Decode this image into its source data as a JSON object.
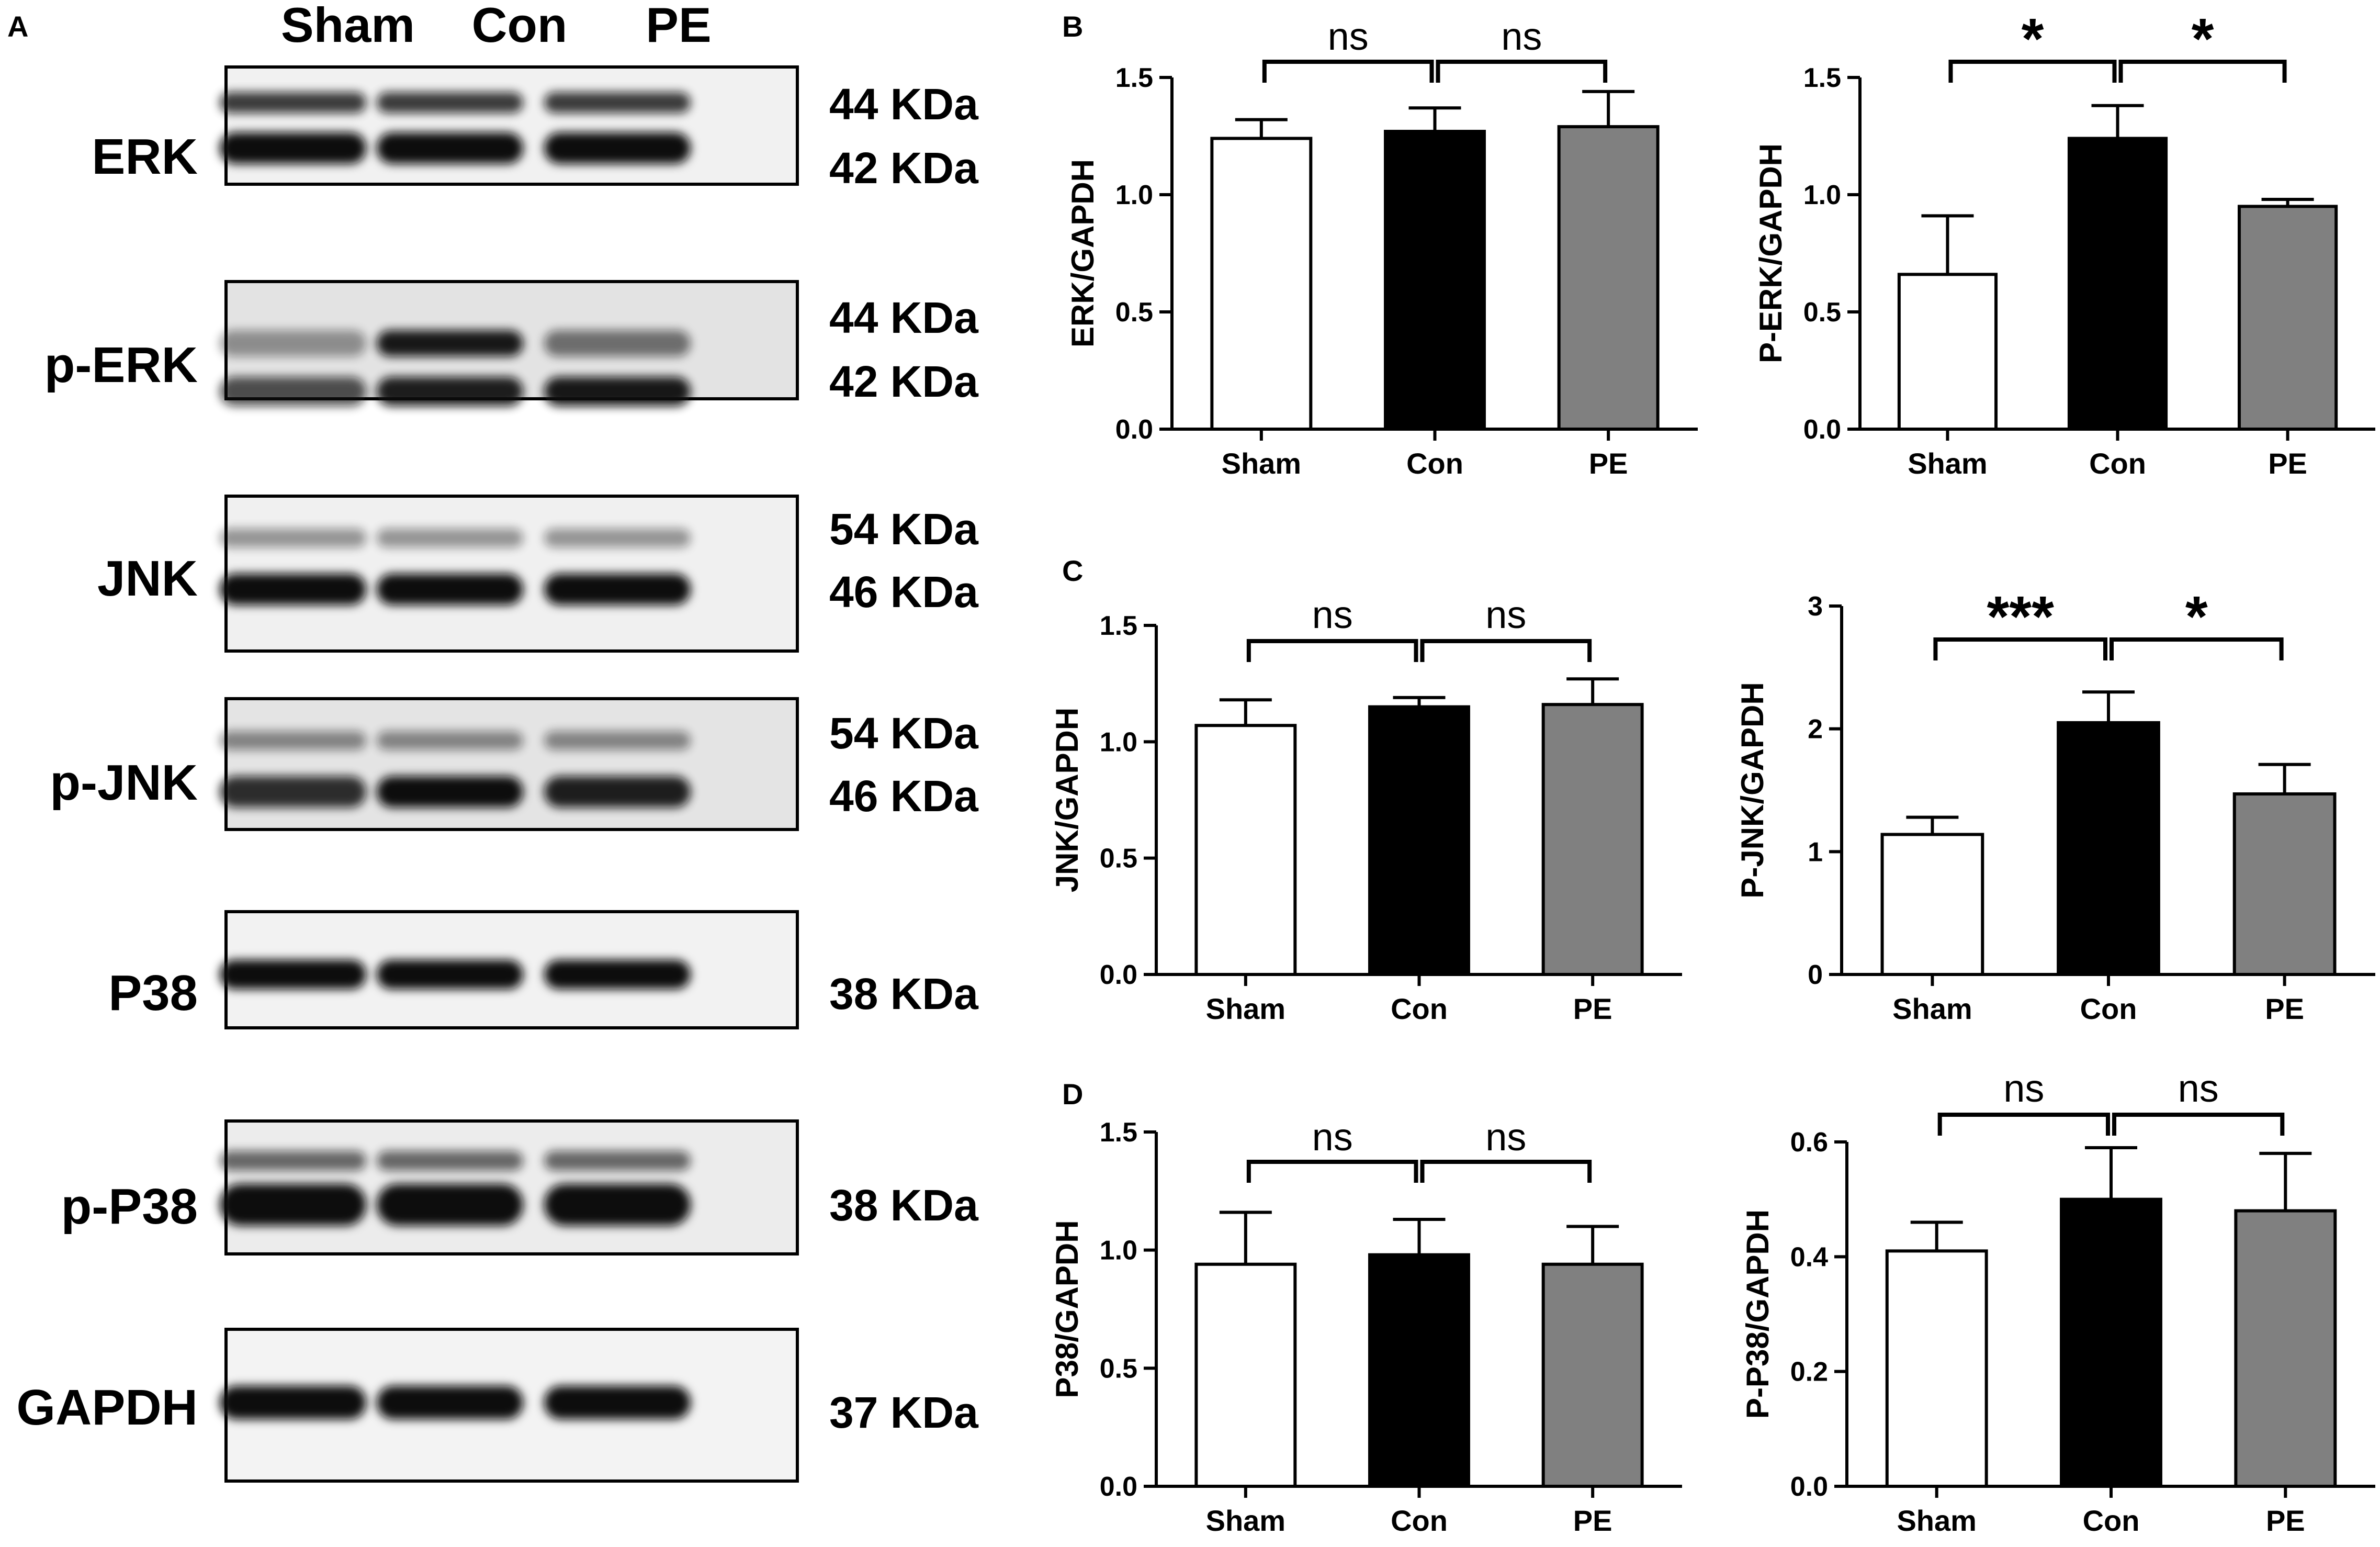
{
  "panel_labels": {
    "A": "A",
    "B": "B",
    "C": "C",
    "D": "D"
  },
  "blot": {
    "lanes": [
      "Sham",
      "Con",
      "PE"
    ],
    "rows": [
      {
        "name": "ERK",
        "kda": [
          "44 KDa",
          "42 KDa"
        ]
      },
      {
        "name": "p-ERK",
        "kda": [
          "44 KDa",
          "42 KDa"
        ]
      },
      {
        "name": "JNK",
        "kda": [
          "54 KDa",
          "46 KDa"
        ]
      },
      {
        "name": "p-JNK",
        "kda": [
          "54 KDa",
          "46 KDa"
        ]
      },
      {
        "name": "P38",
        "kda": [
          "38 KDa"
        ]
      },
      {
        "name": "p-P38",
        "kda": [
          "38 KDa"
        ]
      },
      {
        "name": "GAPDH",
        "kda": [
          "37 KDa"
        ]
      }
    ]
  },
  "colors": {
    "sham": "#ffffff",
    "con": "#000000",
    "pe": "#808080",
    "axis": "#000000"
  },
  "chart_data": [
    {
      "type": "bar",
      "panel": "B",
      "categories": [
        "Sham",
        "Con",
        "PE"
      ],
      "values": [
        1.24,
        1.27,
        1.29
      ],
      "errors": [
        0.08,
        0.1,
        0.15
      ],
      "ylabel": "ERK/GAPDH",
      "ylim": [
        0,
        1.5
      ],
      "yticks": [
        "0.0",
        "0.5",
        "1.0",
        "1.5"
      ],
      "significance": [
        "ns",
        "ns"
      ]
    },
    {
      "type": "bar",
      "panel": "B",
      "categories": [
        "Sham",
        "Con",
        "PE"
      ],
      "values": [
        0.66,
        1.24,
        0.95
      ],
      "errors": [
        0.25,
        0.14,
        0.03
      ],
      "ylabel": "P-ERK/GAPDH",
      "ylim": [
        0,
        1.5
      ],
      "yticks": [
        "0.0",
        "0.5",
        "1.0",
        "1.5"
      ],
      "significance": [
        "*",
        "*"
      ]
    },
    {
      "type": "bar",
      "panel": "C",
      "categories": [
        "Sham",
        "Con",
        "PE"
      ],
      "values": [
        1.07,
        1.15,
        1.16
      ],
      "errors": [
        0.11,
        0.04,
        0.11
      ],
      "ylabel": "JNK/GAPDH",
      "ylim": [
        0,
        1.5
      ],
      "yticks": [
        "0.0",
        "0.5",
        "1.0",
        "1.5"
      ],
      "significance": [
        "ns",
        "ns"
      ]
    },
    {
      "type": "bar",
      "panel": "C",
      "categories": [
        "Sham",
        "Con",
        "PE"
      ],
      "values": [
        1.14,
        2.05,
        1.47
      ],
      "errors": [
        0.14,
        0.25,
        0.24
      ],
      "ylabel": "P-JNK/GAPDH",
      "ylim": [
        0,
        3
      ],
      "yticks": [
        "0",
        "1",
        "2",
        "3"
      ],
      "significance": [
        "***",
        "*"
      ]
    },
    {
      "type": "bar",
      "panel": "D",
      "categories": [
        "Sham",
        "Con",
        "PE"
      ],
      "values": [
        0.94,
        0.98,
        0.94
      ],
      "errors": [
        0.22,
        0.15,
        0.16
      ],
      "ylabel": "P38/GAPDH",
      "ylim": [
        0,
        1.5
      ],
      "yticks": [
        "0.0",
        "0.5",
        "1.0",
        "1.5"
      ],
      "significance": [
        "ns",
        "ns"
      ]
    },
    {
      "type": "bar",
      "panel": "D",
      "categories": [
        "Sham",
        "Con",
        "PE"
      ],
      "values": [
        0.41,
        0.5,
        0.48
      ],
      "errors": [
        0.05,
        0.09,
        0.1
      ],
      "ylabel": "P-P38/GAPDH",
      "ylim": [
        0,
        0.6
      ],
      "yticks": [
        "0.0",
        "0.2",
        "0.4",
        "0.6"
      ],
      "significance": [
        "ns",
        "ns"
      ]
    }
  ]
}
